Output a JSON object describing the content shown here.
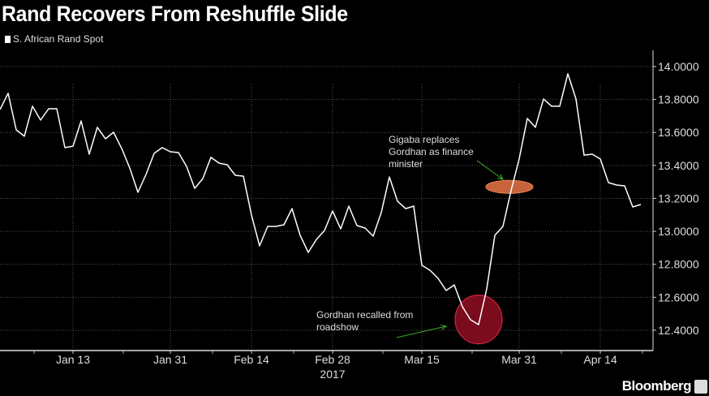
{
  "chart_data": {
    "type": "line",
    "title": "Rand Recovers From Reshuffle Slide",
    "legend": [
      "S. African Rand Spot"
    ],
    "legend_position": "top-left",
    "xlabel": "2017",
    "ylabel": "",
    "ylim": [
      12.28,
      14.1
    ],
    "grid": true,
    "y_ticks": [
      "14.0000",
      "13.8000",
      "13.6000",
      "13.4000",
      "13.2000",
      "13.0000",
      "12.8000",
      "12.6000",
      "12.4000"
    ],
    "y_tick_values": [
      14.0,
      13.8,
      13.6,
      13.4,
      13.2,
      13.0,
      12.8,
      12.6,
      12.4
    ],
    "x_ticks": [
      {
        "label": "Jan 13",
        "index": 9
      },
      {
        "label": "Jan 31",
        "index": 21
      },
      {
        "label": "Feb 14",
        "index": 31
      },
      {
        "label": "Feb 28",
        "index": 41
      },
      {
        "label": "Mar 15",
        "index": 52
      },
      {
        "label": "Mar 31",
        "index": 64
      },
      {
        "label": "Apr 14",
        "index": 74
      }
    ],
    "series": [
      {
        "name": "S. African Rand Spot",
        "color": "#ffffff",
        "values": [
          13.739,
          13.838,
          13.616,
          13.577,
          13.759,
          13.675,
          13.744,
          13.744,
          13.508,
          13.517,
          13.67,
          13.468,
          13.631,
          13.562,
          13.601,
          13.503,
          13.384,
          13.237,
          13.345,
          13.473,
          13.508,
          13.483,
          13.478,
          13.394,
          13.261,
          13.32,
          13.449,
          13.414,
          13.404,
          13.34,
          13.335,
          13.099,
          12.912,
          13.03,
          13.03,
          13.04,
          13.138,
          12.976,
          12.872,
          12.951,
          13.005,
          13.124,
          13.015,
          13.153,
          13.035,
          13.02,
          12.971,
          13.114,
          13.33,
          13.183,
          13.138,
          13.153,
          12.794,
          12.764,
          12.715,
          12.641,
          12.675,
          12.543,
          12.464,
          12.434,
          12.651,
          12.976,
          13.03,
          13.247,
          13.439,
          13.685,
          13.631,
          13.803,
          13.759,
          13.759,
          13.956,
          13.803,
          13.463,
          13.468,
          13.439,
          13.296,
          13.281,
          13.276,
          13.148,
          13.163
        ]
      }
    ],
    "annotations": [
      {
        "text_lines": [
          "Gigaba replaces",
          "Gordhan as finance",
          "minister"
        ],
        "marker": "ellipse",
        "marker_color": "#c8643c",
        "index": 62.8,
        "value": 13.27
      },
      {
        "text_lines": [
          "Gordhan recalled from",
          "roadshow"
        ],
        "marker": "circle",
        "marker_color": "#7a0c1e",
        "index": 59,
        "value": 12.5
      }
    ]
  },
  "branding": {
    "label": "Bloomberg"
  },
  "colors": {
    "background": "#000000",
    "grid": "#555555",
    "arrow": "#3fae2a",
    "circle_stroke": "#d0243c"
  }
}
